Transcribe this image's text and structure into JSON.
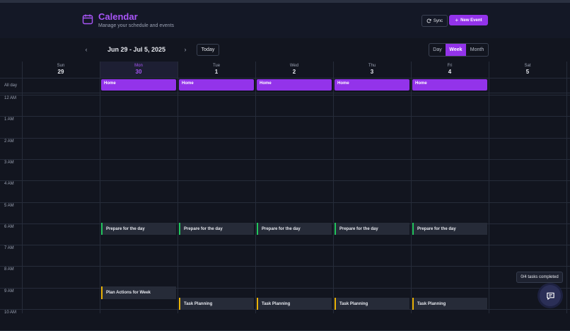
{
  "header": {
    "title": "Calendar",
    "subtitle": "Manage your schedule and events",
    "sync_label": "Sync",
    "new_event_label": "New Event"
  },
  "nav": {
    "prev": "‹",
    "next": "›",
    "range": "Jun 29 - Jul 5, 2025",
    "today_label": "Today",
    "views": [
      "Day",
      "Week",
      "Month"
    ],
    "active_view": "Week"
  },
  "days": [
    {
      "name": "Sun",
      "date": "29"
    },
    {
      "name": "Mon",
      "date": "30",
      "today": true
    },
    {
      "name": "Tue",
      "date": "1"
    },
    {
      "name": "Wed",
      "date": "2"
    },
    {
      "name": "Thu",
      "date": "3"
    },
    {
      "name": "Fri",
      "date": "4"
    },
    {
      "name": "Sat",
      "date": "5"
    }
  ],
  "allday_label": "All day",
  "hours": [
    "12 AM",
    "1 AM",
    "2 AM",
    "3 AM",
    "4 AM",
    "5 AM",
    "6 AM",
    "7 AM",
    "8 AM",
    "9 AM",
    "10 AM"
  ],
  "events": {
    "allday": [
      "Home",
      "Home",
      "Home",
      "Home",
      "Home"
    ],
    "prepare": "Prepare for the day",
    "plan_actions": "Plan Actions for Week",
    "task_planning": "Task Planning"
  },
  "tasks_status": "0/4 tasks completed",
  "colors": {
    "accent": "#9333ea",
    "accent_text": "#a855f7",
    "green": "#22c55e",
    "yellow": "#eab308"
  }
}
